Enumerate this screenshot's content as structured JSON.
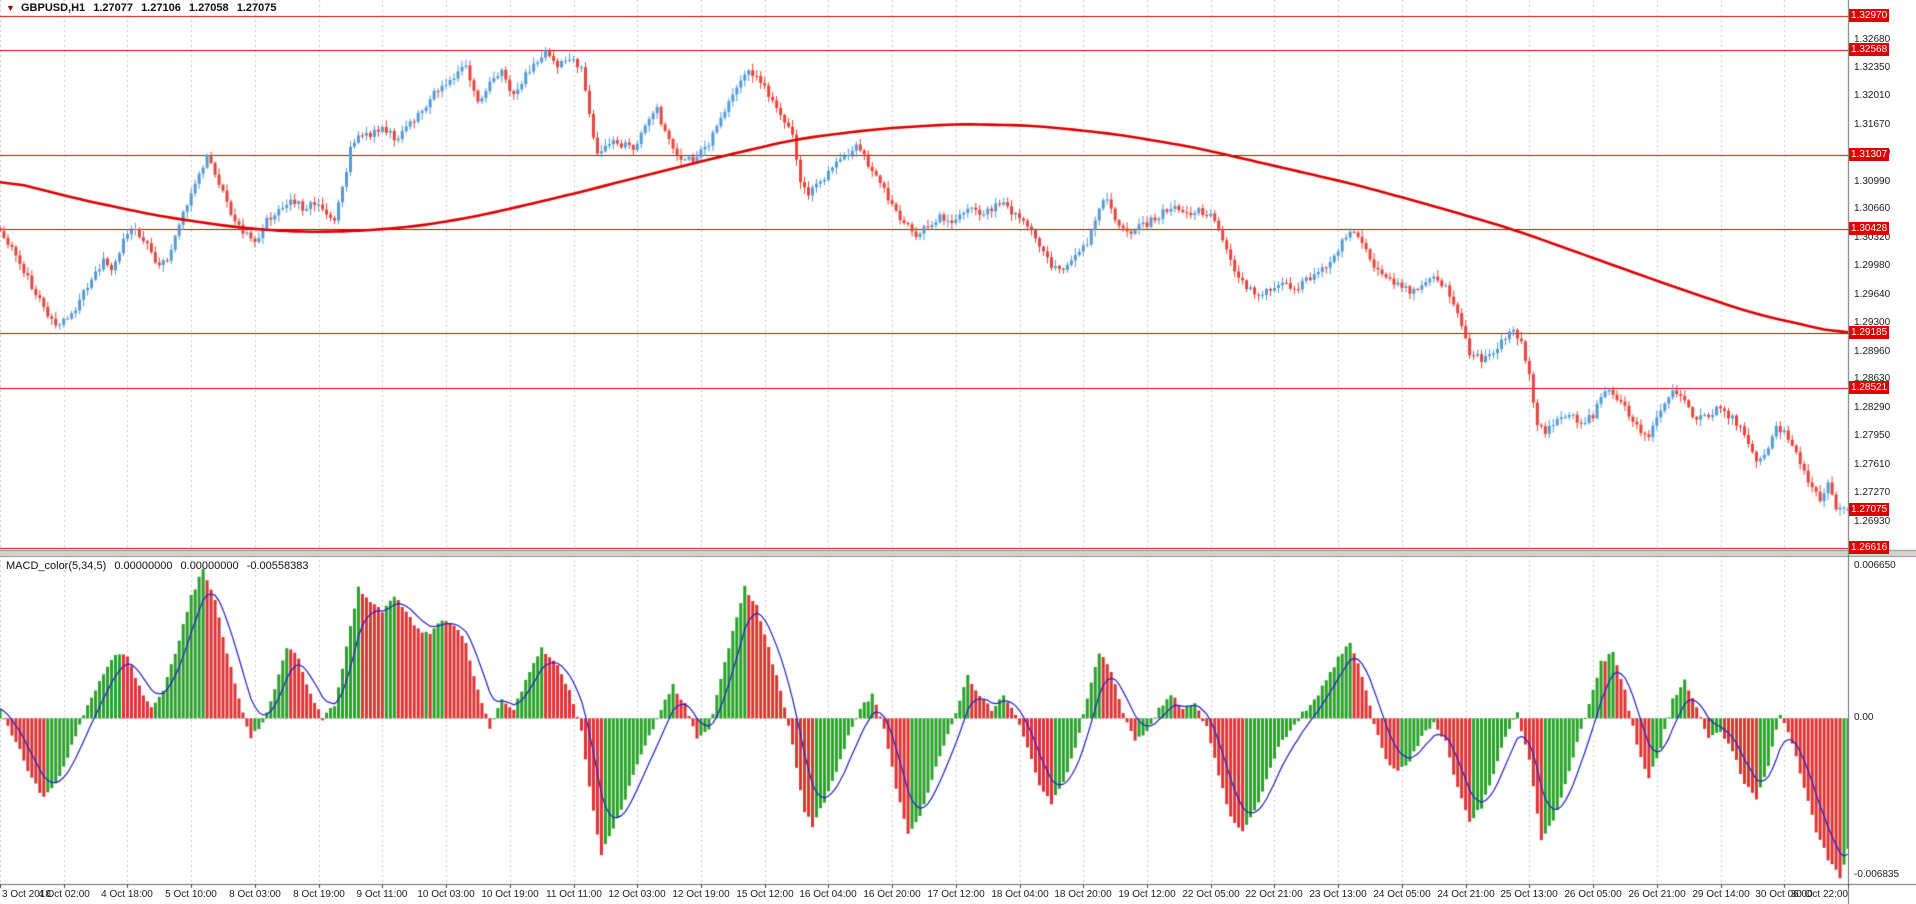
{
  "window": {
    "title": "GBPUSD,H1"
  },
  "header": {
    "marker": "▼",
    "symbol": "GBPUSD,H1",
    "open": "1.27077",
    "high": "1.27106",
    "low": "1.27058",
    "close": "1.27075"
  },
  "macd_header": {
    "name": "MACD_color(5,34,5)",
    "value1": "0.00000000",
    "value2": "0.00000000",
    "value3": "-0.00558383"
  },
  "colors": {
    "background": "#ffffff",
    "bull": "#549bd8",
    "bear": "#e8453c",
    "ma": "#dd0000",
    "sr_line": "#d40000",
    "tag_bg": "#dd0000",
    "tag_text": "#ffffff",
    "grid": "#c9c9c9",
    "axis_text": "#1c1c1c",
    "macd_up": "#2aa12a",
    "macd_down": "#dd3333",
    "macd_signal": "#2121cf",
    "separator": "#d6d3ce",
    "border": "#6e6e6e"
  },
  "chart_data": {
    "type": "candlestick",
    "symbol": "GBPUSD",
    "timeframe": "H1",
    "title": "GBPUSD,H1 with 7 horizontal support/resistance lines, red moving average and MACD_color(5,34,5) sub-window",
    "bar_count": 465,
    "bars_per_label": 16,
    "x_labels": [
      "3 Oct 2018",
      "4 Oct 02:00",
      "4 Oct 18:00",
      "5 Oct 10:00",
      "8 Oct 03:00",
      "8 Oct 19:00",
      "9 Oct 11:00",
      "10 Oct 03:00",
      "10 Oct 19:00",
      "11 Oct 11:00",
      "12 Oct 03:00",
      "12 Oct 19:00",
      "15 Oct 12:00",
      "16 Oct 04:00",
      "16 Oct 20:00",
      "17 Oct 12:00",
      "18 Oct 04:00",
      "18 Oct 20:00",
      "19 Oct 12:00",
      "22 Oct 05:00",
      "22 Oct 21:00",
      "23 Oct 13:00",
      "24 Oct 05:00",
      "24 Oct 21:00",
      "25 Oct 13:00",
      "26 Oct 05:00",
      "26 Oct 21:00",
      "29 Oct 14:00",
      "30 Oct 06:00",
      "30 Oct 22:00"
    ],
    "price_axis": {
      "top_price": 1.33161,
      "bottom_price": 1.26592,
      "labels": [
        "1.32680",
        "1.32350",
        "1.32010",
        "1.31670",
        "1.31330",
        "1.30990",
        "1.30660",
        "1.30320",
        "1.29980",
        "1.29640",
        "1.29300",
        "1.28960",
        "1.28630",
        "1.28290",
        "1.27950",
        "1.27610",
        "1.27270",
        "1.26930"
      ]
    },
    "sr_levels": [
      {
        "label": "1.32970",
        "value": 1.3297
      },
      {
        "label": "1.32568",
        "value": 1.32568
      },
      {
        "label": "1.31307",
        "value": 1.31307
      },
      {
        "label": "1.30428",
        "value": 1.30428
      },
      {
        "label": "1.29185",
        "value": 1.29185
      },
      {
        "label": "1.28521",
        "value": 1.28521
      },
      {
        "label": "1.26616",
        "value": 1.26616
      }
    ],
    "current_price": {
      "label": "1.27075",
      "value": 1.27075
    },
    "last_candle": {
      "open": 1.27077,
      "high": 1.27106,
      "low": 1.27058,
      "close": 1.27075
    },
    "close_anchors": [
      [
        0,
        1.3038
      ],
      [
        3,
        1.3018
      ],
      [
        6,
        1.2992
      ],
      [
        10,
        1.2958
      ],
      [
        14,
        1.2926
      ],
      [
        17,
        1.2934
      ],
      [
        20,
        1.2956
      ],
      [
        23,
        1.2984
      ],
      [
        26,
        1.3004
      ],
      [
        28,
        1.2992
      ],
      [
        31,
        1.3028
      ],
      [
        34,
        1.3044
      ],
      [
        37,
        1.3022
      ],
      [
        40,
        1.2996
      ],
      [
        43,
        1.3014
      ],
      [
        46,
        1.3062
      ],
      [
        49,
        1.3096
      ],
      [
        52,
        1.3128
      ],
      [
        55,
        1.3098
      ],
      [
        58,
        1.3058
      ],
      [
        61,
        1.3038
      ],
      [
        64,
        1.3028
      ],
      [
        67,
        1.3052
      ],
      [
        70,
        1.3068
      ],
      [
        73,
        1.3078
      ],
      [
        76,
        1.3068
      ],
      [
        79,
        1.3074
      ],
      [
        82,
        1.3058
      ],
      [
        84,
        1.305
      ],
      [
        86,
        1.3092
      ],
      [
        88,
        1.3138
      ],
      [
        90,
        1.3158
      ],
      [
        93,
        1.3152
      ],
      [
        96,
        1.3166
      ],
      [
        99,
        1.315
      ],
      [
        102,
        1.3164
      ],
      [
        105,
        1.318
      ],
      [
        108,
        1.3198
      ],
      [
        111,
        1.3214
      ],
      [
        114,
        1.3226
      ],
      [
        117,
        1.3238
      ],
      [
        120,
        1.3196
      ],
      [
        123,
        1.3214
      ],
      [
        126,
        1.323
      ],
      [
        129,
        1.3202
      ],
      [
        132,
        1.3226
      ],
      [
        135,
        1.3244
      ],
      [
        137,
        1.3252
      ],
      [
        140,
        1.3238
      ],
      [
        143,
        1.3246
      ],
      [
        146,
        1.3232
      ],
      [
        148,
        1.3178
      ],
      [
        150,
        1.3134
      ],
      [
        153,
        1.3148
      ],
      [
        156,
        1.3144
      ],
      [
        159,
        1.3138
      ],
      [
        162,
        1.3164
      ],
      [
        165,
        1.3184
      ],
      [
        168,
        1.3148
      ],
      [
        171,
        1.3128
      ],
      [
        174,
        1.3124
      ],
      [
        177,
        1.3138
      ],
      [
        180,
        1.3162
      ],
      [
        183,
        1.3192
      ],
      [
        186,
        1.3222
      ],
      [
        188,
        1.3232
      ],
      [
        191,
        1.3218
      ],
      [
        194,
        1.3198
      ],
      [
        197,
        1.3174
      ],
      [
        199,
        1.3158
      ],
      [
        201,
        1.3098
      ],
      [
        203,
        1.3086
      ],
      [
        206,
        1.3098
      ],
      [
        209,
        1.3114
      ],
      [
        212,
        1.313
      ],
      [
        215,
        1.3142
      ],
      [
        218,
        1.312
      ],
      [
        221,
        1.3098
      ],
      [
        224,
        1.3072
      ],
      [
        227,
        1.3048
      ],
      [
        230,
        1.3036
      ],
      [
        233,
        1.3044
      ],
      [
        236,
        1.3058
      ],
      [
        239,
        1.3052
      ],
      [
        242,
        1.306
      ],
      [
        244,
        1.3072
      ],
      [
        246,
        1.3058
      ],
      [
        249,
        1.3066
      ],
      [
        252,
        1.3074
      ],
      [
        255,
        1.3058
      ],
      [
        258,
        1.3044
      ],
      [
        261,
        1.3022
      ],
      [
        264,
        1.3
      ],
      [
        267,
        1.2992
      ],
      [
        270,
        1.3008
      ],
      [
        273,
        1.3026
      ],
      [
        276,
        1.307
      ],
      [
        278,
        1.3078
      ],
      [
        280,
        1.3056
      ],
      [
        283,
        1.3038
      ],
      [
        286,
        1.3044
      ],
      [
        289,
        1.3052
      ],
      [
        292,
        1.3062
      ],
      [
        295,
        1.307
      ],
      [
        298,
        1.3058
      ],
      [
        301,
        1.3064
      ],
      [
        304,
        1.3058
      ],
      [
        307,
        1.303
      ],
      [
        310,
        1.2996
      ],
      [
        313,
        1.2972
      ],
      [
        316,
        1.2962
      ],
      [
        319,
        1.2972
      ],
      [
        322,
        1.2978
      ],
      [
        325,
        1.2968
      ],
      [
        328,
        1.2982
      ],
      [
        331,
        1.2992
      ],
      [
        334,
        1.3004
      ],
      [
        337,
        1.3028
      ],
      [
        339,
        1.3042
      ],
      [
        342,
        1.3024
      ],
      [
        345,
        1.3
      ],
      [
        348,
        1.2984
      ],
      [
        351,
        1.2978
      ],
      [
        354,
        1.2968
      ],
      [
        357,
        1.2976
      ],
      [
        360,
        1.2982
      ],
      [
        363,
        1.2972
      ],
      [
        366,
        1.294
      ],
      [
        369,
        1.2896
      ],
      [
        372,
        1.2886
      ],
      [
        375,
        1.2898
      ],
      [
        378,
        1.2912
      ],
      [
        380,
        1.2926
      ],
      [
        382,
        1.2906
      ],
      [
        384,
        1.2868
      ],
      [
        386,
        1.281
      ],
      [
        388,
        1.28
      ],
      [
        391,
        1.2812
      ],
      [
        394,
        1.2822
      ],
      [
        397,
        1.281
      ],
      [
        400,
        1.282
      ],
      [
        403,
        1.285
      ],
      [
        406,
        1.2842
      ],
      [
        409,
        1.282
      ],
      [
        412,
        1.2798
      ],
      [
        414,
        1.2792
      ],
      [
        417,
        1.2826
      ],
      [
        420,
        1.2846
      ],
      [
        423,
        1.2836
      ],
      [
        426,
        1.2814
      ],
      [
        429,
        1.2822
      ],
      [
        432,
        1.283
      ],
      [
        435,
        1.2816
      ],
      [
        438,
        1.28
      ],
      [
        441,
        1.2768
      ],
      [
        443,
        1.2772
      ],
      [
        446,
        1.2806
      ],
      [
        448,
        1.2798
      ],
      [
        451,
        1.2772
      ],
      [
        454,
        1.2742
      ],
      [
        457,
        1.272
      ],
      [
        459,
        1.2736
      ],
      [
        461,
        1.2708
      ],
      [
        464,
        1.27075
      ]
    ],
    "ma_anchors": [
      [
        0,
        1.3102
      ],
      [
        20,
        1.3078
      ],
      [
        40,
        1.3058
      ],
      [
        60,
        1.3044
      ],
      [
        75,
        1.3039
      ],
      [
        90,
        1.304
      ],
      [
        105,
        1.3046
      ],
      [
        120,
        1.3058
      ],
      [
        140,
        1.308
      ],
      [
        160,
        1.3104
      ],
      [
        180,
        1.3128
      ],
      [
        200,
        1.315
      ],
      [
        220,
        1.3162
      ],
      [
        240,
        1.3168
      ],
      [
        260,
        1.3166
      ],
      [
        280,
        1.3156
      ],
      [
        300,
        1.314
      ],
      [
        320,
        1.3118
      ],
      [
        340,
        1.3096
      ],
      [
        360,
        1.307
      ],
      [
        380,
        1.3042
      ],
      [
        400,
        1.3008
      ],
      [
        420,
        1.2974
      ],
      [
        440,
        1.2942
      ],
      [
        464,
        1.2916
      ]
    ],
    "macd": {
      "name": "MACD_color(5,34,5)",
      "axis_labels": [
        "0.006650",
        "0.00",
        "-0.006835"
      ],
      "max": 0.00665,
      "min": -0.006835,
      "current": -0.00558383,
      "anchors": [
        [
          0,
          0.0004
        ],
        [
          4,
          -0.001
        ],
        [
          8,
          -0.0026
        ],
        [
          11,
          -0.0034
        ],
        [
          14,
          -0.0028
        ],
        [
          18,
          -0.0012
        ],
        [
          21,
          0.0002
        ],
        [
          25,
          0.0016
        ],
        [
          29,
          0.0028
        ],
        [
          32,
          0.0026
        ],
        [
          35,
          0.0014
        ],
        [
          38,
          0.0004
        ],
        [
          41,
          0.0012
        ],
        [
          45,
          0.0034
        ],
        [
          48,
          0.0052
        ],
        [
          51,
          0.0064
        ],
        [
          54,
          0.005
        ],
        [
          57,
          0.0028
        ],
        [
          60,
          0.0008
        ],
        [
          63,
          -0.0008
        ],
        [
          66,
          -0.0002
        ],
        [
          69,
          0.0012
        ],
        [
          72,
          0.003
        ],
        [
          75,
          0.0026
        ],
        [
          78,
          0.001
        ],
        [
          81,
          0.0
        ],
        [
          84,
          0.0006
        ],
        [
          87,
          0.003
        ],
        [
          90,
          0.0056
        ],
        [
          93,
          0.005
        ],
        [
          96,
          0.0046
        ],
        [
          99,
          0.0052
        ],
        [
          102,
          0.0046
        ],
        [
          105,
          0.0038
        ],
        [
          108,
          0.0036
        ],
        [
          111,
          0.0042
        ],
        [
          114,
          0.004
        ],
        [
          117,
          0.0032
        ],
        [
          120,
          0.0012
        ],
        [
          123,
          -0.0004
        ],
        [
          126,
          0.0008
        ],
        [
          129,
          0.0004
        ],
        [
          132,
          0.0016
        ],
        [
          136,
          0.003
        ],
        [
          140,
          0.0022
        ],
        [
          143,
          0.0012
        ],
        [
          146,
          -0.0006
        ],
        [
          149,
          -0.004
        ],
        [
          151,
          -0.0058
        ],
        [
          154,
          -0.0048
        ],
        [
          157,
          -0.0034
        ],
        [
          160,
          -0.002
        ],
        [
          163,
          -0.0008
        ],
        [
          166,
          0.0004
        ],
        [
          169,
          0.0014
        ],
        [
          172,
          0.0006
        ],
        [
          175,
          -0.0008
        ],
        [
          178,
          -0.0004
        ],
        [
          181,
          0.0016
        ],
        [
          184,
          0.0038
        ],
        [
          187,
          0.0056
        ],
        [
          190,
          0.0048
        ],
        [
          193,
          0.003
        ],
        [
          196,
          0.0012
        ],
        [
          199,
          -0.0012
        ],
        [
          202,
          -0.004
        ],
        [
          204,
          -0.0046
        ],
        [
          207,
          -0.0036
        ],
        [
          210,
          -0.0022
        ],
        [
          213,
          -0.0008
        ],
        [
          216,
          0.0004
        ],
        [
          219,
          0.001
        ],
        [
          222,
          -0.0004
        ],
        [
          225,
          -0.003
        ],
        [
          228,
          -0.005
        ],
        [
          231,
          -0.0042
        ],
        [
          234,
          -0.0026
        ],
        [
          237,
          -0.0012
        ],
        [
          240,
          0.0002
        ],
        [
          243,
          0.0018
        ],
        [
          246,
          0.001
        ],
        [
          249,
          0.0004
        ],
        [
          252,
          0.001
        ],
        [
          255,
          0.0002
        ],
        [
          258,
          -0.0012
        ],
        [
          261,
          -0.0028
        ],
        [
          264,
          -0.0036
        ],
        [
          267,
          -0.0028
        ],
        [
          270,
          -0.0012
        ],
        [
          273,
          0.0008
        ],
        [
          276,
          0.0028
        ],
        [
          279,
          0.002
        ],
        [
          282,
          0.0002
        ],
        [
          285,
          -0.001
        ],
        [
          288,
          -0.0006
        ],
        [
          291,
          0.0004
        ],
        [
          294,
          0.001
        ],
        [
          297,
          0.0004
        ],
        [
          300,
          0.0006
        ],
        [
          303,
          -0.0004
        ],
        [
          306,
          -0.0024
        ],
        [
          309,
          -0.0042
        ],
        [
          312,
          -0.0048
        ],
        [
          315,
          -0.004
        ],
        [
          318,
          -0.0026
        ],
        [
          321,
          -0.0012
        ],
        [
          324,
          -0.0006
        ],
        [
          327,
          0.0002
        ],
        [
          330,
          0.0008
        ],
        [
          333,
          0.0016
        ],
        [
          336,
          0.0026
        ],
        [
          339,
          0.0032
        ],
        [
          342,
          0.0018
        ],
        [
          345,
          -0.0002
        ],
        [
          348,
          -0.0018
        ],
        [
          351,
          -0.0022
        ],
        [
          354,
          -0.0018
        ],
        [
          357,
          -0.0008
        ],
        [
          360,
          -0.0002
        ],
        [
          363,
          -0.001
        ],
        [
          366,
          -0.003
        ],
        [
          369,
          -0.0044
        ],
        [
          372,
          -0.0038
        ],
        [
          375,
          -0.0024
        ],
        [
          378,
          -0.0008
        ],
        [
          381,
          0.0002
        ],
        [
          384,
          -0.0018
        ],
        [
          387,
          -0.0052
        ],
        [
          390,
          -0.0044
        ],
        [
          393,
          -0.0028
        ],
        [
          396,
          -0.001
        ],
        [
          399,
          0.0006
        ],
        [
          402,
          0.0024
        ],
        [
          405,
          0.0028
        ],
        [
          408,
          0.0012
        ],
        [
          411,
          -0.0012
        ],
        [
          414,
          -0.0026
        ],
        [
          417,
          -0.0012
        ],
        [
          420,
          0.0008
        ],
        [
          423,
          0.0016
        ],
        [
          426,
          0.0004
        ],
        [
          429,
          -0.0008
        ],
        [
          432,
          -0.0006
        ],
        [
          435,
          -0.0014
        ],
        [
          438,
          -0.0028
        ],
        [
          441,
          -0.0034
        ],
        [
          444,
          -0.002
        ],
        [
          447,
          0.0002
        ],
        [
          450,
          -0.001
        ],
        [
          453,
          -0.003
        ],
        [
          456,
          -0.0048
        ],
        [
          459,
          -0.006
        ],
        [
          462,
          -0.0068
        ],
        [
          464,
          -0.0055838
        ]
      ]
    }
  }
}
